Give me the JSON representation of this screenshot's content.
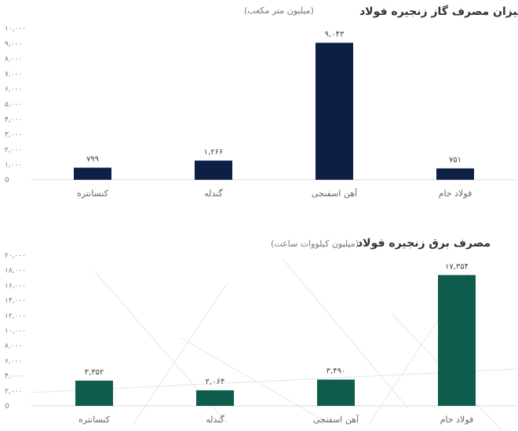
{
  "chart_data": [
    {
      "type": "bar",
      "title": "میزان مصرف گاز زنجیره فولاد",
      "subtitle": "(میلیون متر مکعب)",
      "categories": [
        "کنسانتره",
        "گندله",
        "آهن اسفنجی",
        "فولاد خام"
      ],
      "values": [
        799,
        1266,
        9043,
        751
      ],
      "value_labels": [
        "۷۹۹",
        "۱,۲۶۶",
        "۹,۰۴۳",
        "۷۵۱"
      ],
      "ylim": [
        0,
        10000
      ],
      "yticks": [
        0,
        1000,
        2000,
        3000,
        4000,
        5000,
        6000,
        7000,
        8000,
        9000,
        10000
      ],
      "ytick_labels": [
        "0",
        "۱,۰۰۰",
        "۲,۰۰۰",
        "۳,۰۰۰",
        "۴,۰۰۰",
        "۵,۰۰۰",
        "۶,۰۰۰",
        "۷,۰۰۰",
        "۸,۰۰۰",
        "۹,۰۰۰",
        "۱۰,۰۰۰"
      ],
      "grid": false,
      "color": "#0d1f45"
    },
    {
      "type": "bar",
      "title": "مصرف برق زنجیره فولاد",
      "subtitle": "(میلیون کیلووات ساعت)",
      "categories": [
        "کنسانتره",
        "گندله",
        "آهن اسفنجی",
        "فولاد خام"
      ],
      "values": [
        3352,
        2064,
        3490,
        17354
      ],
      "value_labels": [
        "۳,۳۵۲",
        "۲,۰۶۴",
        "۳,۴۹۰",
        "۱۷,۳۵۴"
      ],
      "ylim": [
        0,
        20000
      ],
      "yticks": [
        0,
        2000,
        4000,
        6000,
        8000,
        10000,
        12000,
        14000,
        16000,
        18000,
        20000
      ],
      "ytick_labels": [
        "0",
        "۲,۰۰۰",
        "۴,۰۰۰",
        "۶,۰۰۰",
        "۸,۰۰۰",
        "۱۰,۰۰۰",
        "۱۲,۰۰۰",
        "۱۴,۰۰۰",
        "۱۶,۰۰۰",
        "۱۸,۰۰۰",
        "۲۰,۰۰۰"
      ],
      "grid": false,
      "color": "#0e5c4b"
    }
  ]
}
